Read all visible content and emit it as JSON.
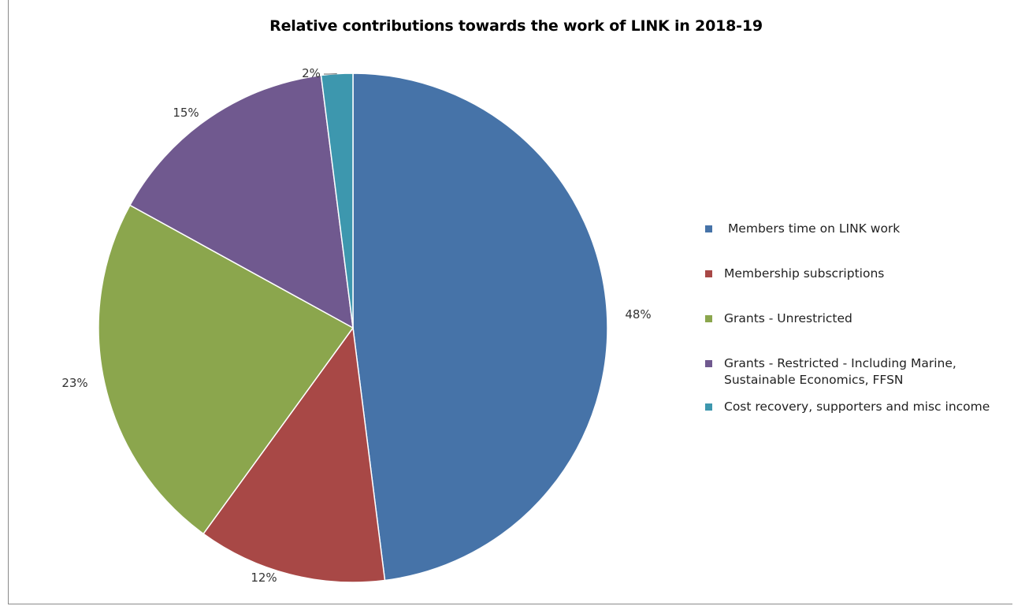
{
  "chart_data": {
    "type": "pie",
    "title": "Relative contributions towards the work of LINK in 2018-19",
    "slices": [
      {
        "label": " Members time on LINK work",
        "value": 48,
        "display": "48%",
        "color": "#4673A8"
      },
      {
        "label": "Membership subscriptions",
        "value": 12,
        "display": "12%",
        "color": "#A84846"
      },
      {
        "label": "Grants - Unrestricted",
        "value": 23,
        "display": "23%",
        "color": "#8BA64D"
      },
      {
        "label": "Grants - Restricted - Including Marine,\nSustainable Economics, FFSN",
        "value": 15,
        "display": "15%",
        "color": "#70598F"
      },
      {
        "label": "Cost recovery, supporters and misc income",
        "value": 2,
        "display": "2%",
        "color": "#3D97AE"
      }
    ],
    "legend_position": "right"
  }
}
